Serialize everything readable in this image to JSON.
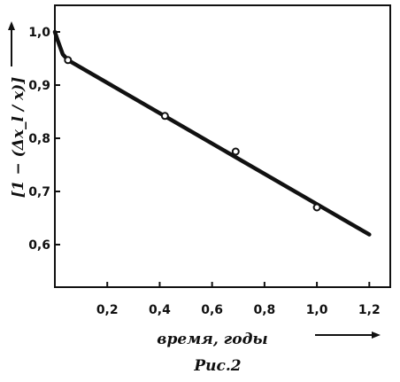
{
  "chart_data": {
    "type": "line",
    "title": "",
    "xlabel": "время, годы",
    "ylabel": "[1 − (Δx_l / x)]",
    "caption": "Рис.2",
    "xlim": [
      0,
      1.28
    ],
    "ylim": [
      0.52,
      1.05
    ],
    "x_ticks": [
      {
        "value": 0.2,
        "label": "0,2"
      },
      {
        "value": 0.4,
        "label": "0,4"
      },
      {
        "value": 0.6,
        "label": "0,6"
      },
      {
        "value": 0.8,
        "label": "0,8"
      },
      {
        "value": 1.0,
        "label": "1,0"
      },
      {
        "value": 1.2,
        "label": "1,2"
      }
    ],
    "y_ticks": [
      {
        "value": 1.0,
        "label": "1,0"
      },
      {
        "value": 0.9,
        "label": "0,9"
      },
      {
        "value": 0.8,
        "label": "0,8"
      },
      {
        "value": 0.7,
        "label": "0,7"
      },
      {
        "value": 0.6,
        "label": "0,6"
      }
    ],
    "grid": false,
    "series": [
      {
        "line": [
          {
            "x": 0.0,
            "y": 1.0
          },
          {
            "x": 0.01,
            "y": 0.985
          },
          {
            "x": 0.03,
            "y": 0.958
          },
          {
            "x": 0.05,
            "y": 0.947
          },
          {
            "x": 1.2,
            "y": 0.619
          }
        ],
        "points": [
          {
            "x": 0.05,
            "y": 0.947
          },
          {
            "x": 0.42,
            "y": 0.842
          },
          {
            "x": 0.69,
            "y": 0.775
          },
          {
            "x": 1.0,
            "y": 0.67
          }
        ]
      }
    ],
    "colors": {
      "ink": "#111111",
      "background": "#ffffff"
    }
  }
}
